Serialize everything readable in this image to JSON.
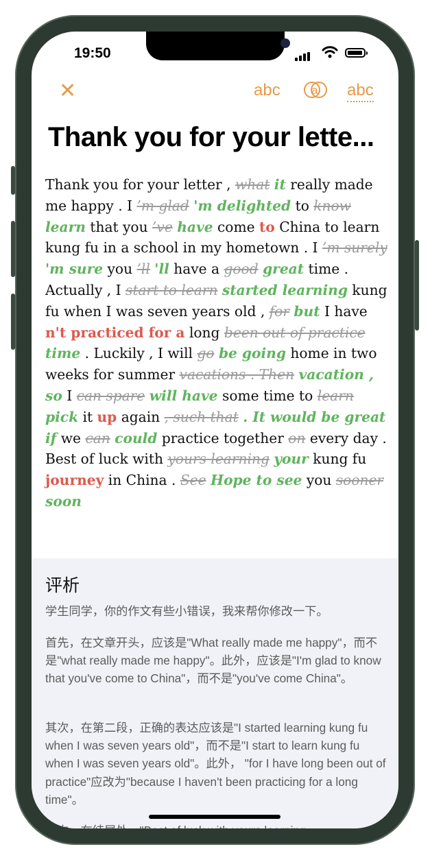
{
  "status_bar": {
    "time": "19:50"
  },
  "toolbar": {
    "close_icon": "close-icon",
    "tool_1": "abc",
    "tool_2": "a",
    "tool_3": "abc"
  },
  "title": "Thank you for your lette...",
  "essay_tokens": [
    {
      "t": "Thank you for your letter ,",
      "k": "n"
    },
    {
      "t": "what",
      "k": "del"
    },
    {
      "t": "it",
      "k": "ins"
    },
    {
      "t": "really made me happy . I",
      "k": "n"
    },
    {
      "t": "’m glad",
      "k": "del"
    },
    {
      "t": "'m delighted",
      "k": "ins"
    },
    {
      "t": "to",
      "k": "n"
    },
    {
      "t": "know",
      "k": "del"
    },
    {
      "t": "learn",
      "k": "ins"
    },
    {
      "t": "that you",
      "k": "n"
    },
    {
      "t": "’ve",
      "k": "del"
    },
    {
      "t": "have",
      "k": "ins"
    },
    {
      "t": "come",
      "k": "n"
    },
    {
      "t": "to",
      "k": "add"
    },
    {
      "t": "China to learn kung fu in a school in my hometown . I",
      "k": "n"
    },
    {
      "t": "’m surely",
      "k": "del"
    },
    {
      "t": "'m sure",
      "k": "ins"
    },
    {
      "t": "you",
      "k": "n"
    },
    {
      "t": "’ll",
      "k": "del"
    },
    {
      "t": "'ll",
      "k": "ins"
    },
    {
      "t": "have a",
      "k": "n"
    },
    {
      "t": "good",
      "k": "del"
    },
    {
      "t": "great",
      "k": "ins"
    },
    {
      "t": "time . Actually , I",
      "k": "n"
    },
    {
      "t": "start to learn",
      "k": "del"
    },
    {
      "t": "started learning",
      "k": "ins"
    },
    {
      "t": "kung fu when I was seven years old ,",
      "k": "n"
    },
    {
      "t": "for",
      "k": "del"
    },
    {
      "t": "but",
      "k": "ins"
    },
    {
      "t": "I have",
      "k": "n"
    },
    {
      "t": "n't practiced for a",
      "k": "add"
    },
    {
      "t": "long",
      "k": "n"
    },
    {
      "t": "been out of practice",
      "k": "del"
    },
    {
      "t": "time",
      "k": "ins"
    },
    {
      "t": ". Luckily , I will",
      "k": "n"
    },
    {
      "t": "go",
      "k": "del"
    },
    {
      "t": "be going",
      "k": "ins"
    },
    {
      "t": "home in two weeks for summer",
      "k": "n"
    },
    {
      "t": "vacations . Then",
      "k": "del"
    },
    {
      "t": "vacation , so",
      "k": "ins"
    },
    {
      "t": "I",
      "k": "n"
    },
    {
      "t": "can spare",
      "k": "del"
    },
    {
      "t": "will have",
      "k": "ins"
    },
    {
      "t": "some time to",
      "k": "n"
    },
    {
      "t": "learn",
      "k": "del"
    },
    {
      "t": "pick",
      "k": "ins"
    },
    {
      "t": "it",
      "k": "n"
    },
    {
      "t": "up",
      "k": "add"
    },
    {
      "t": "again",
      "k": "n"
    },
    {
      "t": ", such that",
      "k": "del"
    },
    {
      "t": ". It would be great if",
      "k": "ins"
    },
    {
      "t": "we",
      "k": "n"
    },
    {
      "t": "can",
      "k": "del"
    },
    {
      "t": "could",
      "k": "ins"
    },
    {
      "t": "practice together",
      "k": "n"
    },
    {
      "t": "on",
      "k": "del"
    },
    {
      "t": "every day . Best of luck with",
      "k": "n"
    },
    {
      "t": "yours learning",
      "k": "del"
    },
    {
      "t": "your",
      "k": "ins"
    },
    {
      "t": "kung fu",
      "k": "n"
    },
    {
      "t": "journey",
      "k": "add"
    },
    {
      "t": "in China .",
      "k": "n"
    },
    {
      "t": "See",
      "k": "del"
    },
    {
      "t": "Hope to see",
      "k": "ins"
    },
    {
      "t": "you",
      "k": "n"
    },
    {
      "t": "sooner",
      "k": "del"
    },
    {
      "t": "soon",
      "k": "ins"
    }
  ],
  "analysis": {
    "title": "评析",
    "p1": "学生同学，你的作文有些小错误，我来帮你修改一下。",
    "p2": "首先，在文章开头，应该是\"What really made me happy\"，而不是\"what really made me happy\"。此外，应该是\"I'm glad to know that you've come to China\"，而不是\"you've come China\"。",
    "p3": "其次，在第二段，正确的表达应该是\"I started learning kung fu when I was seven years old\"，而不是\"I start to learn kung fu when I was seven years old\"。此外， \"for I have long been out of practice\"应改为\"because I haven't been practicing for a long time\"。",
    "p4_partial": "再次，在结尾处，\"Best of luck with yours learning"
  },
  "colors": {
    "accent": "#e79a48",
    "inserted": "#5fb45d",
    "added": "#dc5a4f",
    "deleted": "#9b9b9b",
    "analysis_bg": "#f1f2f7"
  }
}
